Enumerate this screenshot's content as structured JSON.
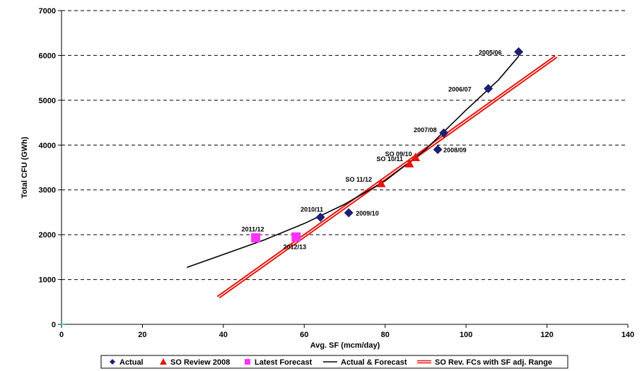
{
  "chart_data": {
    "type": "scatter",
    "xlabel": "Avg. SF (mcm/day)",
    "ylabel": "Total CFU (GWh)",
    "xlim": [
      0,
      140
    ],
    "ylim": [
      0,
      7000
    ],
    "x_ticks": [
      0,
      20,
      40,
      60,
      80,
      100,
      120,
      140
    ],
    "y_ticks": [
      0,
      1000,
      2000,
      3000,
      4000,
      5000,
      6000,
      7000
    ],
    "grid": "horizontal dashed",
    "legend_position": "bottom",
    "series": [
      {
        "name": "Actual",
        "marker": "diamond",
        "color": "#1f1f7a",
        "points": [
          {
            "x": 113,
            "y": 6080,
            "label": "2005/06"
          },
          {
            "x": 105.5,
            "y": 5260,
            "label": "2006/07"
          },
          {
            "x": 94.5,
            "y": 4270,
            "label": "2007/08"
          },
          {
            "x": 93,
            "y": 3900,
            "label": "2008/09"
          },
          {
            "x": 71,
            "y": 2490,
            "label": "2009/10"
          },
          {
            "x": 64,
            "y": 2390,
            "label": "2010/11"
          }
        ]
      },
      {
        "name": "SO Review 2008",
        "marker": "triangle",
        "color": "#e8140c",
        "points": [
          {
            "x": 87.5,
            "y": 3720,
            "label": "SO 09/10"
          },
          {
            "x": 86,
            "y": 3580,
            "label": "SO 10/11"
          },
          {
            "x": 79,
            "y": 3140,
            "label": "SO 11/12"
          }
        ]
      },
      {
        "name": "Latest Forecast",
        "marker": "square",
        "color": "#ff33ff",
        "points": [
          {
            "x": 48,
            "y": 1930,
            "label": "2011/12"
          },
          {
            "x": 58,
            "y": 1950,
            "label": "2012/13"
          }
        ]
      },
      {
        "name": "Actual & Forecast",
        "type": "line",
        "color": "#000000",
        "points": [
          {
            "x": 31,
            "y": 1270
          },
          {
            "x": 40,
            "y": 1560
          },
          {
            "x": 50,
            "y": 1880
          },
          {
            "x": 60,
            "y": 2250
          },
          {
            "x": 70,
            "y": 2680
          },
          {
            "x": 80,
            "y": 3200
          },
          {
            "x": 90,
            "y": 3900
          },
          {
            "x": 100,
            "y": 4780
          },
          {
            "x": 108,
            "y": 5450
          },
          {
            "x": 113,
            "y": 5980
          }
        ]
      },
      {
        "name": "SO Rev. FCs with SF adj. Range",
        "type": "band",
        "color": "#e8140c",
        "lower": [
          {
            "x": 39,
            "y": 590
          },
          {
            "x": 122.5,
            "y": 5960
          }
        ],
        "upper": [
          {
            "x": 38.5,
            "y": 620
          },
          {
            "x": 122,
            "y": 5990
          }
        ]
      }
    ]
  }
}
